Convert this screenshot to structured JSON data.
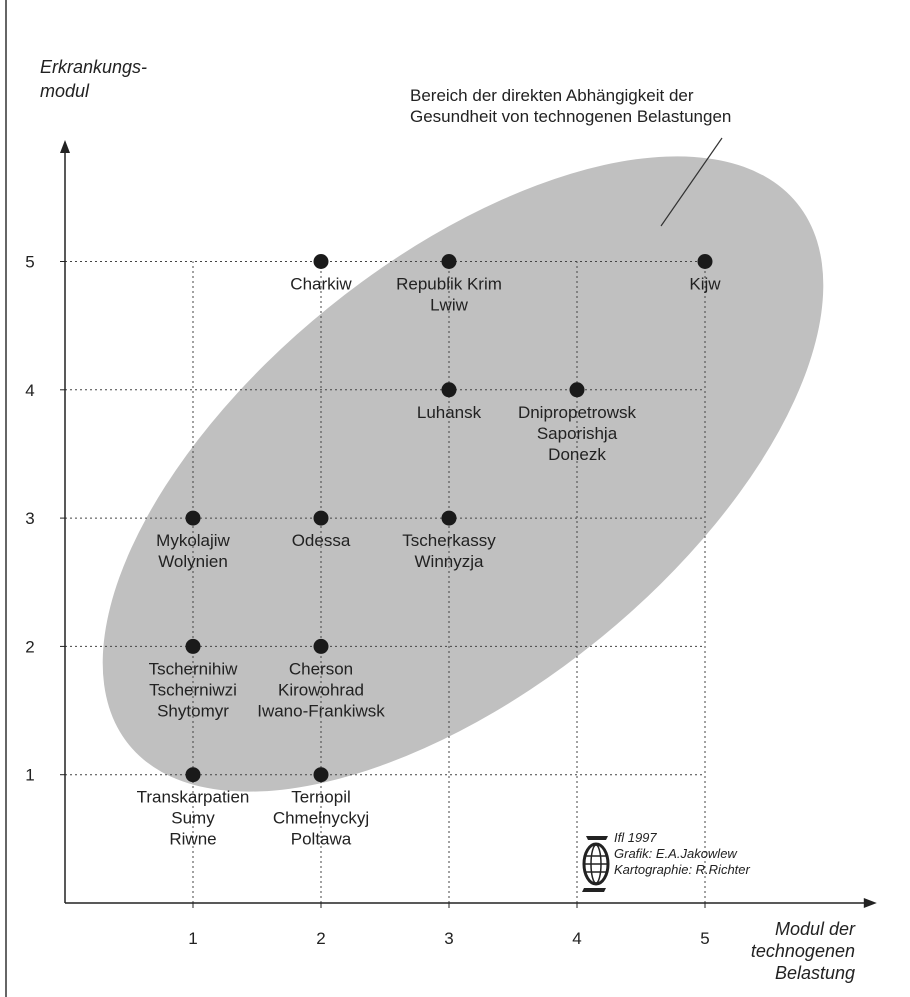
{
  "chart_data": {
    "type": "scatter",
    "ylabel": [
      "Erkrankungs-",
      "modul"
    ],
    "xlabel": [
      "Modul der",
      "technogenen",
      "Belastung"
    ],
    "xticks": [
      1,
      2,
      3,
      4,
      5
    ],
    "yticks": [
      1,
      2,
      3,
      4,
      5
    ],
    "xlim": [
      0,
      5.6
    ],
    "ylim": [
      0,
      5.9
    ],
    "grid": true,
    "points": [
      {
        "x": 2,
        "y": 5,
        "labels": [
          "Charkiw"
        ]
      },
      {
        "x": 3,
        "y": 5,
        "labels": [
          "Republik Krim",
          "Lwiw"
        ]
      },
      {
        "x": 5,
        "y": 5,
        "labels": [
          "Kijw"
        ]
      },
      {
        "x": 3,
        "y": 4,
        "labels": [
          "Luhansk"
        ]
      },
      {
        "x": 4,
        "y": 4,
        "labels": [
          "Dnipropetrowsk",
          "Saporishja",
          "Donezk"
        ]
      },
      {
        "x": 1,
        "y": 3,
        "labels": [
          "Mykolajiw",
          "Wolynien"
        ]
      },
      {
        "x": 2,
        "y": 3,
        "labels": [
          "Odessa"
        ]
      },
      {
        "x": 3,
        "y": 3,
        "labels": [
          "Tscherkassy",
          "Winnyzja"
        ]
      },
      {
        "x": 1,
        "y": 2,
        "labels": [
          "Tschernihiw",
          "Tscherniwzi",
          "Shytomyr"
        ]
      },
      {
        "x": 2,
        "y": 2,
        "labels": [
          "Cherson",
          "Kirowohrad",
          "Iwano-Frankiwsk"
        ]
      },
      {
        "x": 1,
        "y": 1,
        "labels": [
          "Transkarpatien",
          "Sumy",
          "Riwne"
        ]
      },
      {
        "x": 2,
        "y": 1,
        "labels": [
          "Ternopil",
          "Chmelnyckyj",
          "Poltawa"
        ]
      }
    ],
    "region_annotation": [
      "Bereich der direkten Abhängigkeit der",
      "Gesundheit von technogenen Belastungen"
    ],
    "region_color": "#c0c0c0",
    "point_color": "#1a1a1a",
    "credits": [
      "Ifl 1997",
      "Grafik: E.A.Jakowlew",
      "Kartographie: R.Richter"
    ],
    "logo_icon": "ifl-globe-logo-icon"
  }
}
